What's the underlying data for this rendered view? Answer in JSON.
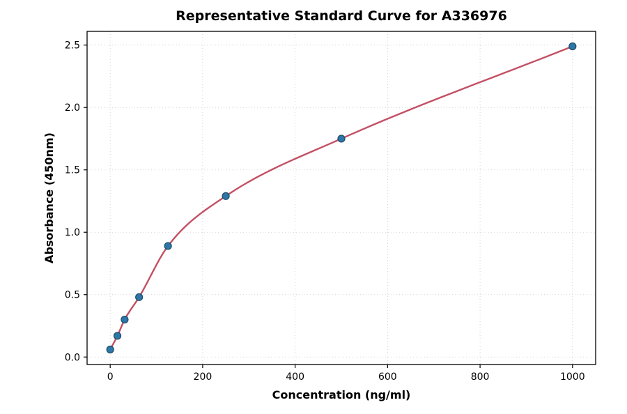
{
  "chart_data": {
    "type": "scatter",
    "title": "Representative Standard Curve for A336976",
    "xlabel": "Concentration (ng/ml)",
    "ylabel": "Absorbance (450nm)",
    "x": [
      0,
      15.6,
      31.25,
      62.5,
      125,
      250,
      500,
      1000
    ],
    "y": [
      0.06,
      0.17,
      0.3,
      0.48,
      0.89,
      1.29,
      1.75,
      2.49
    ],
    "xlim": [
      -50,
      1050
    ],
    "ylim": [
      -0.06,
      2.61
    ],
    "xticks": [
      0,
      200,
      400,
      600,
      800,
      1000
    ],
    "yticks": [
      0.0,
      0.5,
      1.0,
      1.5,
      2.0,
      2.5
    ],
    "grid": true,
    "legend": "none",
    "series": [
      {
        "name": "standard-points",
        "type": "scatter"
      },
      {
        "name": "fit-curve",
        "type": "line"
      }
    ],
    "colors": {
      "point_fill": "#2e75a8",
      "point_edge": "#1d4d66",
      "line": "#c35064",
      "grid": "#c9c9c9",
      "spine": "#000000"
    }
  }
}
